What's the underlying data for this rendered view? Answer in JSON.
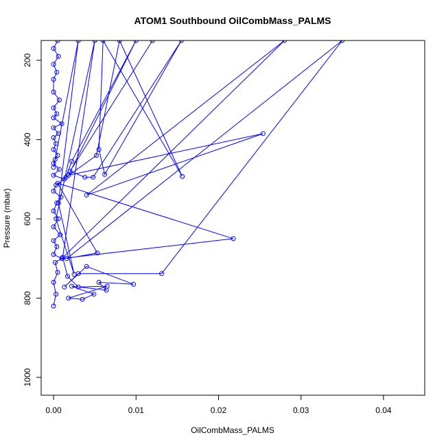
{
  "chart_data": {
    "type": "line",
    "title": "ATOM1 Southbound OilCombMass_PALMS",
    "xlabel": "OilCombMass_PALMS",
    "ylabel": "Pressure (mbar)",
    "xlim": [
      -0.0015,
      0.045
    ],
    "ylim": [
      1045,
      150
    ],
    "y_reversed": true,
    "x_ticks": [
      0.0,
      0.01,
      0.02,
      0.03,
      0.04
    ],
    "x_tick_labels": [
      "0.00",
      "0.01",
      "0.02",
      "0.03",
      "0.04"
    ],
    "y_ticks": [
      200,
      400,
      600,
      800,
      1000
    ],
    "y_tick_labels": [
      "200",
      "400",
      "600",
      "800",
      "1000"
    ],
    "grid": false,
    "series": [
      {
        "color": "#0000ff",
        "marker": "open-circle",
        "points": [
          [
            0.0,
            820
          ],
          [
            0.0003,
            790
          ],
          [
            0.0,
            760
          ],
          [
            0.0005,
            735
          ],
          [
            0.0002,
            710
          ],
          [
            0.001,
            700
          ],
          [
            0.0,
            690
          ],
          [
            0.0004,
            670
          ],
          [
            0.0,
            655
          ],
          [
            0.0008,
            640
          ],
          [
            0.0,
            620
          ],
          [
            0.0006,
            600
          ],
          [
            0.0,
            580
          ],
          [
            0.0004,
            560
          ],
          [
            0.0009,
            545
          ],
          [
            0.0,
            530
          ],
          [
            0.0003,
            515
          ],
          [
            0.0013,
            500
          ],
          [
            0.0,
            490
          ],
          [
            0.0007,
            475
          ],
          [
            0.0,
            460
          ],
          [
            0.0002,
            450
          ],
          [
            0.0005,
            440
          ],
          [
            0.0,
            425
          ],
          [
            0.0003,
            410
          ],
          [
            0.0,
            395
          ],
          [
            0.0006,
            385
          ],
          [
            0.0,
            370
          ],
          [
            0.001,
            360
          ],
          [
            0.0,
            345
          ],
          [
            0.0004,
            335
          ],
          [
            0.0,
            320
          ],
          [
            0.0007,
            300
          ],
          [
            0.0,
            280
          ],
          [
            0.0,
            248
          ],
          [
            0.0004,
            230
          ],
          [
            0.0,
            210
          ],
          [
            0.0006,
            190
          ],
          [
            0.0,
            170
          ],
          [
            0.0005,
            150
          ],
          [
            0.012,
            150
          ],
          [
            0.002,
            480
          ],
          [
            0.0038,
            495
          ],
          [
            0.0048,
            495
          ],
          [
            0.0155,
            150
          ],
          [
            0.0062,
            488
          ],
          [
            0.0055,
            425
          ],
          [
            0.006,
            150
          ],
          [
            0.0156,
            493
          ],
          [
            0.008,
            150
          ],
          [
            0.0052,
            440
          ],
          [
            0.0015,
            495
          ],
          [
            0.0022,
            455
          ],
          [
            0.01,
            150
          ],
          [
            0.0018,
            490
          ],
          [
            0.0254,
            385
          ],
          [
            0.004,
            540
          ],
          [
            0.028,
            150
          ],
          [
            0.001,
            700
          ],
          [
            0.0218,
            650
          ],
          [
            0.0005,
            510
          ],
          [
            0.0053,
            686
          ],
          [
            0.0016,
            700
          ],
          [
            0.035,
            150
          ],
          [
            0.0131,
            738
          ],
          [
            0.003,
            738
          ],
          [
            0.0013,
            772
          ],
          [
            0.004,
            720
          ],
          [
            0.0097,
            765
          ],
          [
            0.0055,
            760
          ],
          [
            0.0064,
            780
          ],
          [
            0.0022,
            770
          ],
          [
            0.0049,
            790
          ],
          [
            0.0035,
            803
          ],
          [
            0.0018,
            800
          ],
          [
            0.0065,
            770
          ],
          [
            0.003,
            772
          ],
          [
            0.0017,
            745
          ],
          [
            0.0011,
            697
          ],
          [
            0.005,
            150
          ],
          [
            0.0003,
            600
          ],
          [
            0.0025,
            740
          ],
          [
            0.0006,
            560
          ],
          [
            0.003,
            150
          ],
          [
            0.0,
            470
          ]
        ]
      }
    ]
  }
}
